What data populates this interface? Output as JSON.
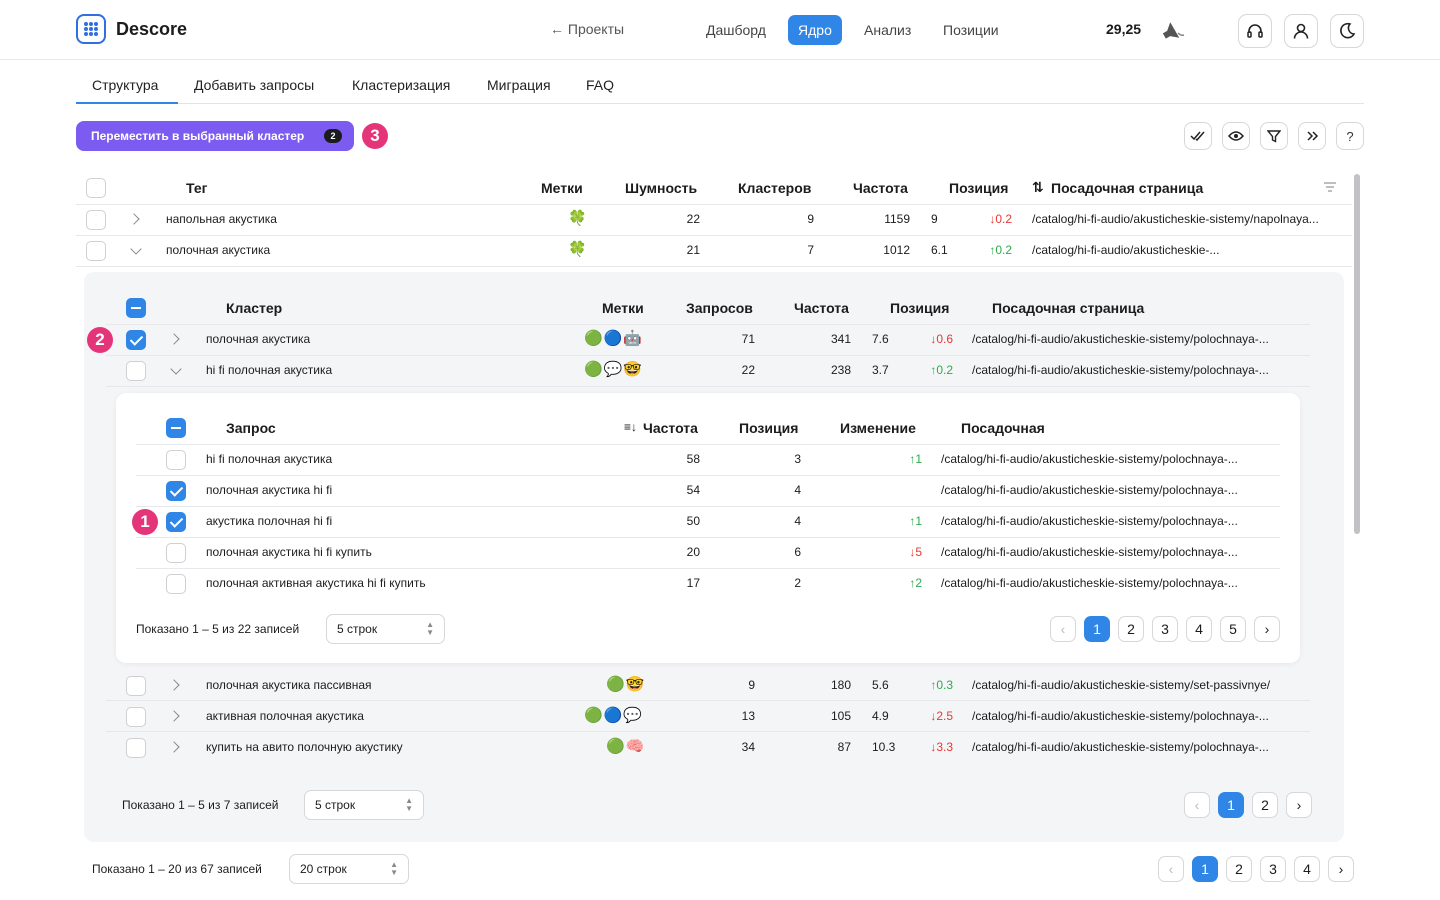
{
  "header": {
    "brand": "Descore",
    "back": "← Проекты",
    "nav": [
      "Дашборд",
      "Ядро",
      "Анализ",
      "Позиции"
    ],
    "active_nav": 1,
    "balance": "29,25",
    "icons": [
      "headset-icon",
      "user-icon",
      "moon-icon"
    ]
  },
  "tabs": [
    "Структура",
    "Добавить запросы",
    "Кластеризация",
    "Миграция",
    "FAQ"
  ],
  "toolbar": {
    "move_label": "Переместить в выбранный кластер",
    "move_count": "2",
    "marker": "3",
    "icons": [
      "double-check-icon",
      "eye-icon",
      "filter-icon",
      "double-chevron-icon",
      "help-icon"
    ],
    "help_label": "?"
  },
  "main_table": {
    "headers": {
      "tag": "Тег",
      "labels": "Метки",
      "noise": "Шумность",
      "clusters": "Кластеров",
      "freq": "Частота",
      "pos": "Позиция",
      "sort_icon": "⇅",
      "url": "Посадочная страница"
    },
    "rows": [
      {
        "tag": "напольная акустика",
        "labels": "🍀",
        "noise": "22",
        "clusters": "9",
        "freq": "1159",
        "pos": "9",
        "delta": "↓0.2",
        "dir": "down",
        "url": "/catalog/hi-fi-audio/akusticheskie-sistemy/napolnaya..."
      },
      {
        "tag": "полочная акустика",
        "labels": "🍀",
        "noise": "21",
        "clusters": "7",
        "freq": "1012",
        "pos": "6.1",
        "delta": "↑0.2",
        "dir": "up",
        "url": "/catalog/hi-fi-audio/akusticheskie-..."
      }
    ]
  },
  "cluster_table": {
    "headers": {
      "cluster": "Кластер",
      "labels": "Метки",
      "queries": "Запросов",
      "freq": "Частота",
      "pos": "Позиция",
      "url": "Посадочная страница"
    },
    "marker": "2",
    "rows": [
      {
        "name": "полочная акустика",
        "labels": "🟢🔵🤖",
        "queries": "71",
        "freq": "341",
        "pos": "7.6",
        "delta": "↓0.6",
        "dir": "down",
        "url": "/catalog/hi-fi-audio/akusticheskie-sistemy/polochnaya-..."
      },
      {
        "name": "hi fi полочная акустика",
        "labels": "🟢💬🤓",
        "queries": "22",
        "freq": "238",
        "pos": "3.7",
        "delta": "↑0.2",
        "dir": "up",
        "url": "/catalog/hi-fi-audio/akusticheskie-sistemy/polochnaya-..."
      },
      {
        "name": "полочная акустика пассивная",
        "labels": "🟢🤓",
        "queries": "9",
        "freq": "180",
        "pos": "5.6",
        "delta": "↑0.3",
        "dir": "up",
        "url": "/catalog/hi-fi-audio/akusticheskie-sistemy/set-passivnye/"
      },
      {
        "name": "активная полочная акустика",
        "labels": "🟢🔵💬",
        "queries": "13",
        "freq": "105",
        "pos": "4.9",
        "delta": "↓2.5",
        "dir": "down",
        "url": "/catalog/hi-fi-audio/akusticheskie-sistemy/polochnaya-..."
      },
      {
        "name": "купить на авито полочную акустику",
        "labels": "🟢🧠",
        "queries": "34",
        "freq": "87",
        "pos": "10.3",
        "delta": "↓3.3",
        "dir": "down",
        "url": "/catalog/hi-fi-audio/akusticheskie-sistemy/polochnaya-..."
      }
    ],
    "pagination": {
      "text": "Показано 1 – 5 из 7 записей",
      "rows": "5 строк",
      "pages": [
        "1",
        "2"
      ]
    }
  },
  "query_table": {
    "headers": {
      "query": "Запрос",
      "sort_icon": "≡↓",
      "freq": "Частота",
      "pos": "Позиция",
      "change": "Изменение",
      "url": "Посадочная"
    },
    "marker": "1",
    "rows": [
      {
        "q": "hi fi полочная акустика",
        "freq": "58",
        "pos": "3",
        "change": "↑1",
        "dir": "up",
        "url": "/catalog/hi-fi-audio/akusticheskie-sistemy/polochnaya-...",
        "checked": false
      },
      {
        "q": "полочная акустика hi fi",
        "freq": "54",
        "pos": "4",
        "change": "",
        "dir": "",
        "url": "/catalog/hi-fi-audio/akusticheskie-sistemy/polochnaya-...",
        "checked": true
      },
      {
        "q": "акустика полочная hi fi",
        "freq": "50",
        "pos": "4",
        "change": "↑1",
        "dir": "up",
        "url": "/catalog/hi-fi-audio/akusticheskie-sistemy/polochnaya-...",
        "checked": true
      },
      {
        "q": "полочная акустика hi fi купить",
        "freq": "20",
        "pos": "6",
        "change": "↓5",
        "dir": "down",
        "url": "/catalog/hi-fi-audio/akusticheskie-sistemy/polochnaya-...",
        "checked": false
      },
      {
        "q": "полочная активная акустика hi fi купить",
        "freq": "17",
        "pos": "2",
        "change": "↑2",
        "dir": "up",
        "url": "/catalog/hi-fi-audio/akusticheskie-sistemy/polochnaya-...",
        "checked": false
      }
    ],
    "pagination": {
      "text": "Показано 1 – 5 из 22 записей",
      "rows": "5 строк",
      "pages": [
        "1",
        "2",
        "3",
        "4",
        "5"
      ]
    }
  },
  "footer_pagination": {
    "text": "Показано 1 – 20 из 67 записей",
    "rows": "20 строк",
    "pages": [
      "1",
      "2",
      "3",
      "4"
    ]
  },
  "pager_prev": "‹",
  "pager_next": "›",
  "select_arrow": "⌃⌄",
  "colors": {
    "accent": "#2f86e6",
    "purple": "#7c5cf0",
    "marker": "#e5357a",
    "up": "#2eab4c",
    "down": "#e53935"
  }
}
